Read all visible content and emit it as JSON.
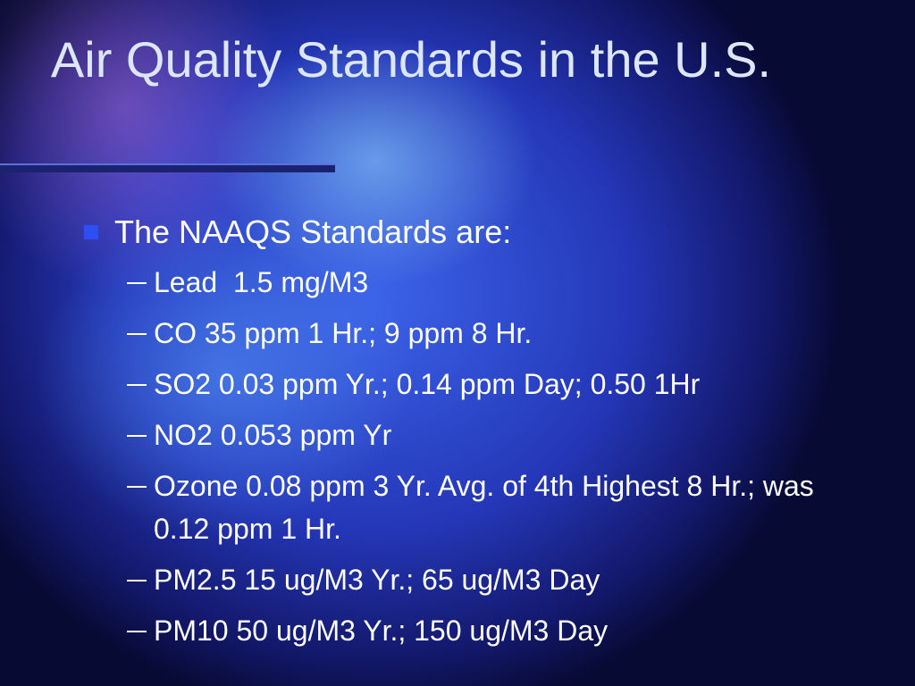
{
  "title": "Air Quality Standards in the U.S.",
  "bullets": [
    {
      "text": "The NAAQS Standards are:",
      "items": [
        "Lead  1.5 mg/M3",
        "CO 35 ppm 1 Hr.; 9 ppm 8 Hr.",
        "SO2 0.03 ppm Yr.; 0.14 ppm Day; 0.50 1Hr",
        "NO2 0.053 ppm Yr",
        "Ozone 0.08 ppm 3 Yr. Avg. of 4th Highest 8 Hr.; was 0.12 ppm 1 Hr.",
        "PM2.5 15 ug/M3 Yr.; 65 ug/M3 Day",
        "PM10 50 ug/M3 Yr.; 150 ug/M3 Day"
      ]
    }
  ]
}
